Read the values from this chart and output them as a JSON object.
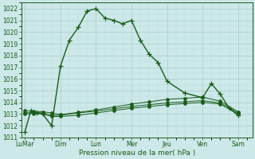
{
  "xlabel": "Pression niveau de la mer( hPa )",
  "bg_color": "#cce8e8",
  "grid_color_major": "#aacccc",
  "grid_color_minor": "#bbdddd",
  "line_color": "#1a5c1a",
  "ylim": [
    1011,
    1022.5
  ],
  "yticks": [
    1011,
    1012,
    1013,
    1014,
    1015,
    1016,
    1017,
    1018,
    1019,
    1020,
    1021,
    1022
  ],
  "xtick_labels": [
    "LuMar",
    "Dim",
    "Lun",
    "Mer",
    "Jeu",
    "Ven",
    "Sam"
  ],
  "xtick_positions": [
    0,
    2,
    4,
    6,
    8,
    10,
    12
  ],
  "series1_x": [
    0,
    0.33,
    0.67,
    1,
    1.5,
    2,
    2.5,
    3,
    3.5,
    4,
    4.5,
    5,
    5.5,
    6,
    6.5,
    7,
    7.5,
    8,
    9,
    10,
    10.5,
    11,
    11.5,
    12
  ],
  "series1_y": [
    1011.5,
    1013.3,
    1013.1,
    1013.0,
    1012.0,
    1017.1,
    1019.3,
    1020.4,
    1021.8,
    1022.0,
    1021.2,
    1021.0,
    1020.7,
    1021.0,
    1019.3,
    1018.1,
    1017.4,
    1015.8,
    1014.8,
    1014.4,
    1015.6,
    1014.7,
    1013.5,
    1012.9
  ],
  "series2_x": [
    0,
    0.5,
    1,
    1.5,
    2,
    3,
    4,
    5,
    6,
    7,
    8,
    9,
    10,
    11,
    12
  ],
  "series2_y": [
    1013.0,
    1013.05,
    1013.0,
    1012.8,
    1012.8,
    1012.9,
    1013.1,
    1013.3,
    1013.5,
    1013.65,
    1013.8,
    1013.9,
    1014.0,
    1013.85,
    1013.0
  ],
  "series3_x": [
    0,
    0.5,
    1,
    1.5,
    2,
    3,
    4,
    5,
    6,
    7,
    8,
    9,
    10,
    11,
    12
  ],
  "series3_y": [
    1013.1,
    1013.15,
    1013.1,
    1012.9,
    1012.9,
    1013.1,
    1013.25,
    1013.45,
    1013.65,
    1013.8,
    1013.95,
    1014.05,
    1014.15,
    1013.95,
    1013.1
  ],
  "series4_x": [
    0,
    0.5,
    1,
    1.5,
    2,
    3,
    4,
    5,
    6,
    7,
    8,
    9,
    10,
    11,
    12
  ],
  "series4_y": [
    1013.3,
    1013.25,
    1013.2,
    1013.1,
    1012.95,
    1013.15,
    1013.35,
    1013.6,
    1013.85,
    1014.05,
    1014.25,
    1014.35,
    1014.45,
    1014.1,
    1013.2
  ]
}
